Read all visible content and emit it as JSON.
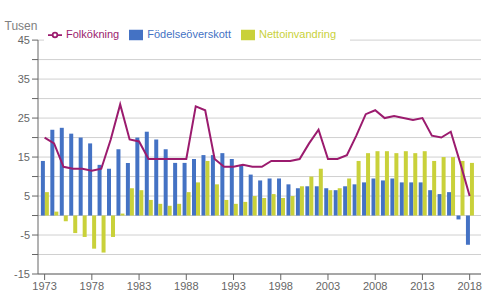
{
  "chart_data": {
    "type": "bar",
    "ylabel": "Tusen",
    "x": [
      1973,
      1974,
      1975,
      1976,
      1977,
      1978,
      1979,
      1980,
      1981,
      1982,
      1983,
      1984,
      1985,
      1986,
      1987,
      1988,
      1989,
      1990,
      1991,
      1992,
      1993,
      1994,
      1995,
      1996,
      1997,
      1998,
      1999,
      2000,
      2001,
      2002,
      2003,
      2004,
      2005,
      2006,
      2007,
      2008,
      2009,
      2010,
      2011,
      2012,
      2013,
      2014,
      2015,
      2016,
      2017,
      2018
    ],
    "series": [
      {
        "name": "Födelseöverskott",
        "type": "bar",
        "color": "#4472c4",
        "values": [
          14.0,
          22.0,
          22.5,
          21.0,
          20.0,
          18.5,
          13.0,
          12.0,
          17.0,
          13.5,
          20.0,
          21.5,
          19.5,
          17.0,
          13.5,
          13.5,
          14.5,
          15.5,
          15.5,
          16.0,
          14.5,
          13.0,
          10.5,
          9.0,
          9.5,
          9.5,
          8.0,
          7.0,
          7.5,
          7.5,
          7.0,
          6.5,
          7.5,
          8.0,
          8.5,
          9.5,
          9.0,
          9.5,
          8.5,
          8.5,
          8.5,
          6.5,
          5.5,
          6.0,
          -1.0,
          -7.5
        ]
      },
      {
        "name": "Nettoinvandring",
        "type": "bar",
        "color": "#c9d13a",
        "values": [
          6.0,
          1.0,
          -1.5,
          -4.5,
          -5.5,
          -8.5,
          -9.5,
          -5.5,
          0.5,
          7.0,
          6.5,
          4.0,
          3.0,
          2.5,
          3.0,
          6.0,
          8.5,
          14.0,
          8.0,
          4.0,
          3.0,
          3.5,
          5.0,
          4.5,
          5.5,
          4.5,
          5.0,
          7.5,
          10.0,
          12.0,
          6.5,
          7.0,
          9.5,
          14.0,
          16.0,
          16.5,
          16.5,
          16.0,
          16.5,
          16.0,
          16.5,
          14.0,
          15.0,
          15.0,
          14.0,
          13.5
        ]
      },
      {
        "name": "Folkökning",
        "type": "line",
        "color": "#9b1b6e",
        "values": [
          20.0,
          18.5,
          12.5,
          12.0,
          12.0,
          11.5,
          12.0,
          19.5,
          28.5,
          19.5,
          19.0,
          14.5,
          14.5,
          14.5,
          14.5,
          14.5,
          28.0,
          27.0,
          14.5,
          12.5,
          12.5,
          13.0,
          12.5,
          12.5,
          14.0,
          14.0,
          14.0,
          14.5,
          18.5,
          22.0,
          14.5,
          14.5,
          15.5,
          20.5,
          26.0,
          27.0,
          25.0,
          25.5,
          25.0,
          24.5,
          25.0,
          20.5,
          20.0,
          21.5,
          13.5,
          5.0
        ]
      }
    ],
    "xlim": [
      1972.3,
      2019.2
    ],
    "xticks": [
      1973,
      1978,
      1983,
      1988,
      1993,
      1998,
      2003,
      2008,
      2013,
      2018
    ],
    "ylim": [
      -15,
      45
    ],
    "yticks": [
      -15,
      {
        "value": -10,
        "label": ""
      },
      -5,
      {
        "value": 0,
        "label": ""
      },
      5,
      {
        "value": 10,
        "label": ""
      },
      15,
      {
        "value": 20,
        "label": ""
      },
      25,
      {
        "value": 30,
        "label": ""
      },
      35,
      {
        "value": 40,
        "label": ""
      },
      45
    ],
    "grid": true,
    "legend": "upper left"
  }
}
